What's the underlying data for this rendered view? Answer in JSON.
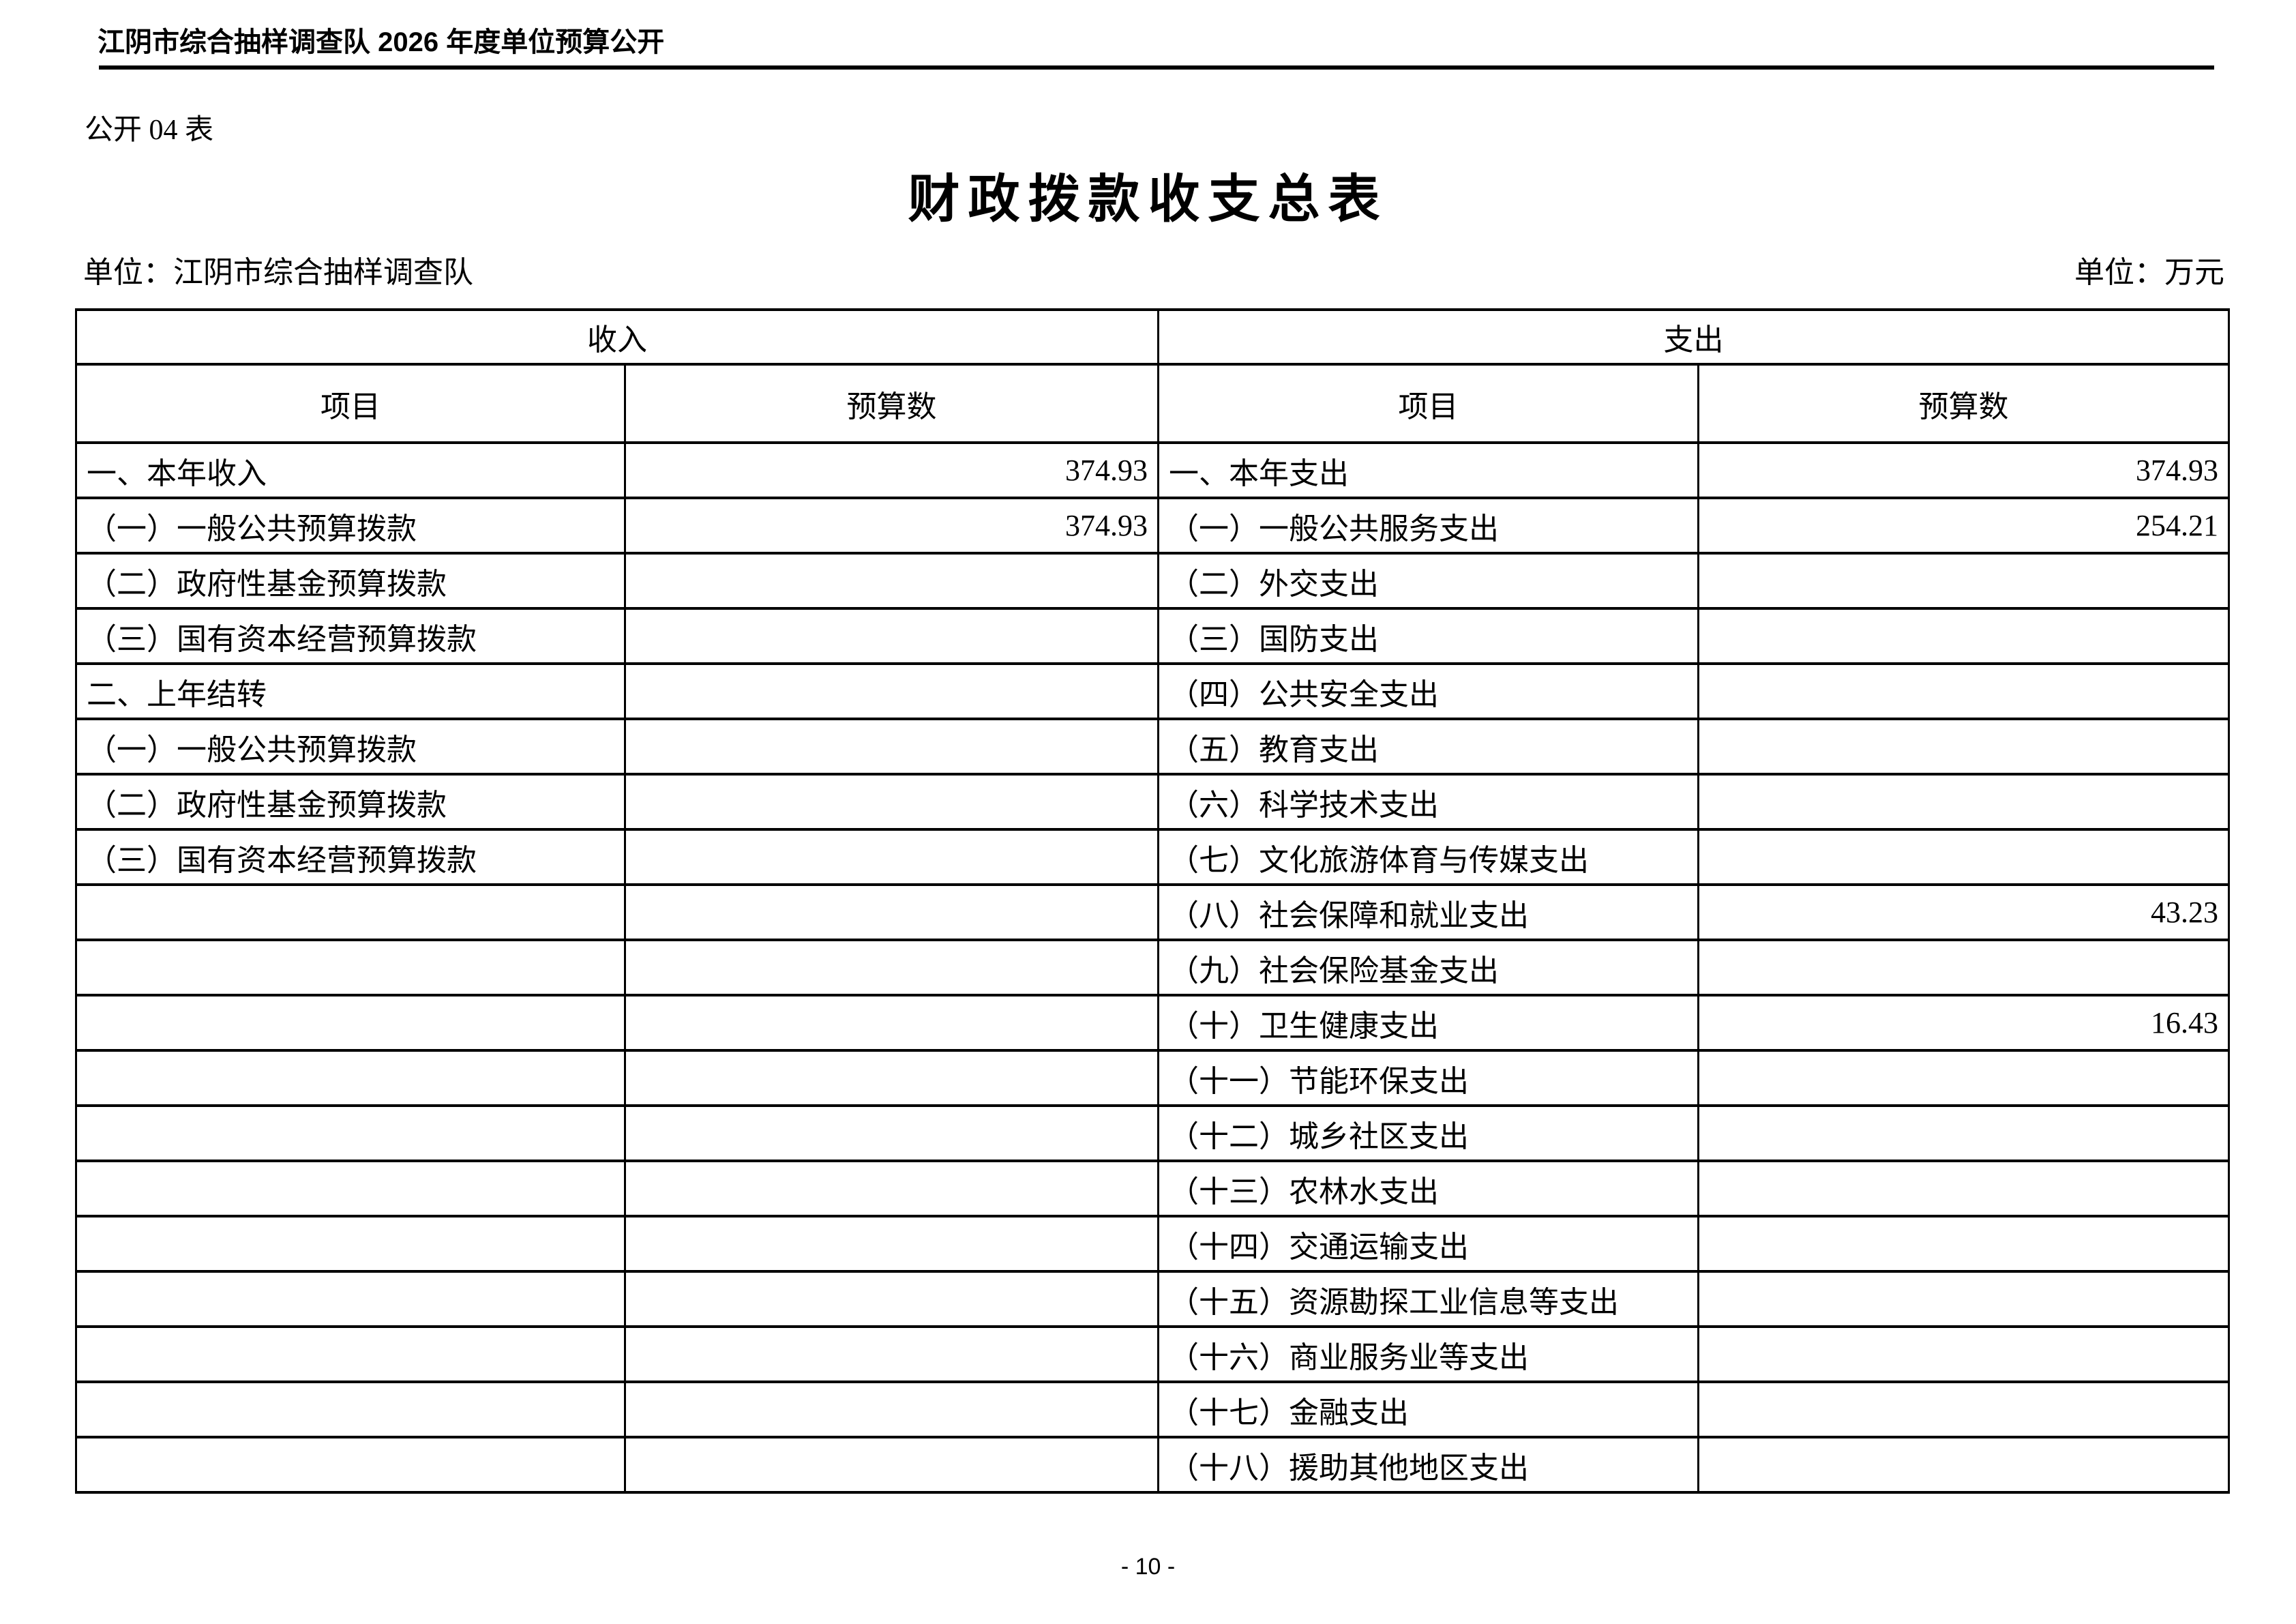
{
  "page": {
    "header": "江阴市综合抽样调查队 2026 年度单位预算公开",
    "table_code": "公开 04 表",
    "title": "财政拨款收支总表",
    "unit_left": "单位：江阴市综合抽样调查队",
    "unit_right": "单位：万元",
    "page_number": "- 10 -"
  },
  "colors": {
    "text": "#000000",
    "background": "#ffffff",
    "border": "#000000"
  },
  "table": {
    "income_header": "收入",
    "expense_header": "支出",
    "col_item": "项目",
    "col_budget": "预算数",
    "income_rows": [
      {
        "label": "一、本年收入",
        "value": "374.93"
      },
      {
        "label": "（一）一般公共预算拨款",
        "value": "374.93"
      },
      {
        "label": "（二）政府性基金预算拨款",
        "value": ""
      },
      {
        "label": "（三）国有资本经营预算拨款",
        "value": ""
      },
      {
        "label": "二、上年结转",
        "value": ""
      },
      {
        "label": "（一）一般公共预算拨款",
        "value": ""
      },
      {
        "label": "（二）政府性基金预算拨款",
        "value": ""
      },
      {
        "label": "（三）国有资本经营预算拨款",
        "value": ""
      },
      {
        "label": "",
        "value": ""
      },
      {
        "label": "",
        "value": ""
      },
      {
        "label": "",
        "value": ""
      },
      {
        "label": "",
        "value": ""
      },
      {
        "label": "",
        "value": ""
      },
      {
        "label": "",
        "value": ""
      },
      {
        "label": "",
        "value": ""
      },
      {
        "label": "",
        "value": ""
      },
      {
        "label": "",
        "value": ""
      },
      {
        "label": "",
        "value": ""
      },
      {
        "label": "",
        "value": ""
      }
    ],
    "expense_rows": [
      {
        "label": "一、本年支出",
        "value": "374.93"
      },
      {
        "label": "（一）一般公共服务支出",
        "value": "254.21"
      },
      {
        "label": "（二）外交支出",
        "value": ""
      },
      {
        "label": "（三）国防支出",
        "value": ""
      },
      {
        "label": "（四）公共安全支出",
        "value": ""
      },
      {
        "label": "（五）教育支出",
        "value": ""
      },
      {
        "label": "（六）科学技术支出",
        "value": ""
      },
      {
        "label": "（七）文化旅游体育与传媒支出",
        "value": ""
      },
      {
        "label": "（八）社会保障和就业支出",
        "value": "43.23"
      },
      {
        "label": "（九）社会保险基金支出",
        "value": ""
      },
      {
        "label": "（十）卫生健康支出",
        "value": "16.43"
      },
      {
        "label": "（十一）节能环保支出",
        "value": ""
      },
      {
        "label": "（十二）城乡社区支出",
        "value": ""
      },
      {
        "label": "（十三）农林水支出",
        "value": ""
      },
      {
        "label": "（十四）交通运输支出",
        "value": ""
      },
      {
        "label": "（十五）资源勘探工业信息等支出",
        "value": ""
      },
      {
        "label": "（十六）商业服务业等支出",
        "value": ""
      },
      {
        "label": "（十七）金融支出",
        "value": ""
      },
      {
        "label": "（十八）援助其他地区支出",
        "value": ""
      }
    ]
  }
}
